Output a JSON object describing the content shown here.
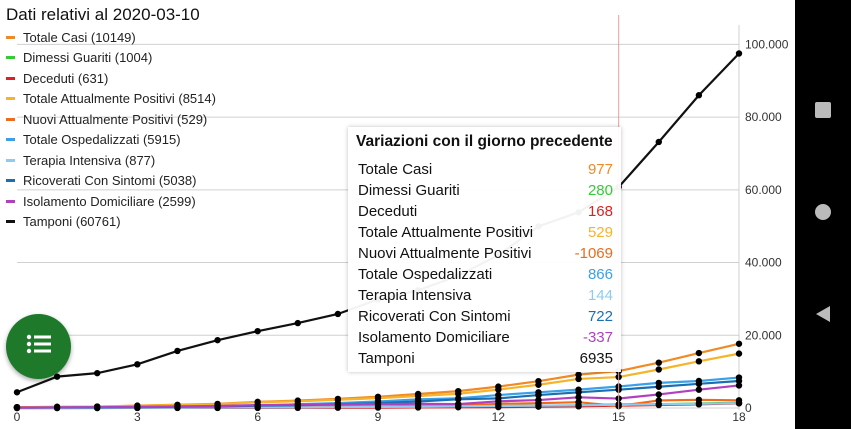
{
  "title": "Dati relativi al 2020-03-10",
  "legend": [
    {
      "label": "Totale Casi (10149)",
      "color": "#f08a24"
    },
    {
      "label": "Dimessi Guariti (1004)",
      "color": "#33cc33"
    },
    {
      "label": "Deceduti (631)",
      "color": "#e02020"
    },
    {
      "label": "Totale Attualmente Positivi (8514)",
      "color": "#f5b42a"
    },
    {
      "label": "Nuovi Attualmente Positivi (529)",
      "color": "#f06a1a"
    },
    {
      "label": "Totale Ospedalizzati (5915)",
      "color": "#3aa0e8"
    },
    {
      "label": "Terapia Intensiva (877)",
      "color": "#8ecbf0"
    },
    {
      "label": "Ricoverati Con Sintomi (5038)",
      "color": "#1a6fb0"
    },
    {
      "label": "Isolamento Domiciliare (2599)",
      "color": "#b040c0"
    },
    {
      "label": "Tamponi (60761)",
      "color": "#111111"
    }
  ],
  "tooltip": {
    "title": "Variazioni con il giorno precedente",
    "rows": [
      {
        "label": "Totale Casi",
        "value": "977",
        "color": "#f08a24"
      },
      {
        "label": "Dimessi Guariti",
        "value": "280",
        "color": "#33cc33"
      },
      {
        "label": "Deceduti",
        "value": "168",
        "color": "#e02020"
      },
      {
        "label": "Totale Attualmente Positivi",
        "value": "529",
        "color": "#f5b42a"
      },
      {
        "label": "Nuovi Attualmente Positivi",
        "value": "-1069",
        "color": "#f06a1a"
      },
      {
        "label": "Totale Ospedalizzati",
        "value": "866",
        "color": "#3aa0e8"
      },
      {
        "label": "Terapia Intensiva",
        "value": "144",
        "color": "#8ecbf0"
      },
      {
        "label": "Ricoverati Con Sintomi",
        "value": "722",
        "color": "#1a6fb0"
      },
      {
        "label": "Isolamento Domiciliare",
        "value": "-337",
        "color": "#b040c0"
      },
      {
        "label": "Tamponi",
        "value": "6935",
        "color": "#111111"
      }
    ]
  },
  "fab_icon": "list-icon",
  "nav": {
    "recents_icon": "square-icon",
    "home_icon": "circle-icon",
    "back_icon": "triangle-back-icon"
  },
  "chart_data": {
    "type": "line",
    "x": [
      0,
      1,
      2,
      3,
      4,
      5,
      6,
      7,
      8,
      9,
      10,
      11,
      12,
      13,
      14,
      15,
      16,
      17,
      18
    ],
    "xticks": [
      "0",
      "3",
      "6",
      "9",
      "12",
      "15",
      "18"
    ],
    "yticks": [
      "0",
      "20.000",
      "40.000",
      "60.000",
      "80.000",
      "100.000"
    ],
    "ylim": [
      0,
      110000
    ],
    "xlim": [
      0,
      18
    ],
    "highlight_x": 15,
    "series": [
      {
        "name": "Totale Casi",
        "color": "#f08a24",
        "values": [
          229,
          322,
          400,
          650,
          888,
          1128,
          1694,
          2036,
          2502,
          3089,
          3858,
          4636,
          5883,
          7375,
          9172,
          10149,
          12462,
          15113,
          17660
        ]
      },
      {
        "name": "Dimessi Guariti",
        "color": "#33cc33",
        "values": [
          1,
          1,
          3,
          45,
          46,
          46,
          83,
          149,
          160,
          276,
          414,
          523,
          589,
          622,
          724,
          1004,
          1045,
          1258,
          1439
        ]
      },
      {
        "name": "Deceduti",
        "color": "#e02020",
        "values": [
          7,
          10,
          12,
          17,
          21,
          29,
          34,
          52,
          79,
          107,
          148,
          197,
          233,
          366,
          463,
          631,
          827,
          1016,
          1266
        ]
      },
      {
        "name": "Totale Attualmente Positivi",
        "color": "#f5b42a",
        "values": [
          221,
          311,
          385,
          588,
          821,
          1049,
          1577,
          1835,
          2263,
          2706,
          3296,
          3916,
          5061,
          6387,
          7985,
          8514,
          10590,
          12839,
          14955
        ]
      },
      {
        "name": "Nuovi Attualmente Positivi",
        "color": "#f06a1a",
        "values": [
          221,
          90,
          74,
          203,
          233,
          228,
          528,
          258,
          428,
          443,
          590,
          620,
          1145,
          1326,
          1598,
          529,
          2076,
          2249,
          2116
        ]
      },
      {
        "name": "Totale Ospedalizzati",
        "color": "#3aa0e8",
        "values": [
          127,
          150,
          164,
          304,
          409,
          506,
          587,
          1034,
          1346,
          1790,
          2394,
          2651,
          3557,
          4316,
          5049,
          5915,
          6904,
          7426,
          8372
        ]
      },
      {
        "name": "Terapia Intensiva",
        "color": "#8ecbf0",
        "values": [
          26,
          35,
          36,
          56,
          64,
          105,
          140,
          166,
          229,
          295,
          351,
          462,
          567,
          650,
          733,
          877,
          1028,
          1153,
          1328
        ]
      },
      {
        "name": "Ricoverati Con Sintomi",
        "color": "#1a6fb0",
        "values": [
          101,
          114,
          128,
          248,
          345,
          401,
          639,
          742,
          1034,
          1346,
          1790,
          2394,
          2651,
          3557,
          4316,
          5038,
          5838,
          6650,
          7426
        ]
      },
      {
        "name": "Isolamento Domiciliare",
        "color": "#b040c0",
        "values": [
          94,
          162,
          221,
          284,
          412,
          543,
          798,
          927,
          1000,
          1065,
          1155,
          1060,
          1843,
          2180,
          2936,
          2599,
          3724,
          5036,
          6201
        ]
      },
      {
        "name": "Tamponi",
        "color": "#111111",
        "values": [
          4324,
          8623,
          9587,
          12014,
          15695,
          18661,
          21127,
          23345,
          25856,
          29837,
          32362,
          36359,
          42062,
          49937,
          53826,
          60761,
          73154,
          86011,
          97488
        ]
      }
    ]
  }
}
